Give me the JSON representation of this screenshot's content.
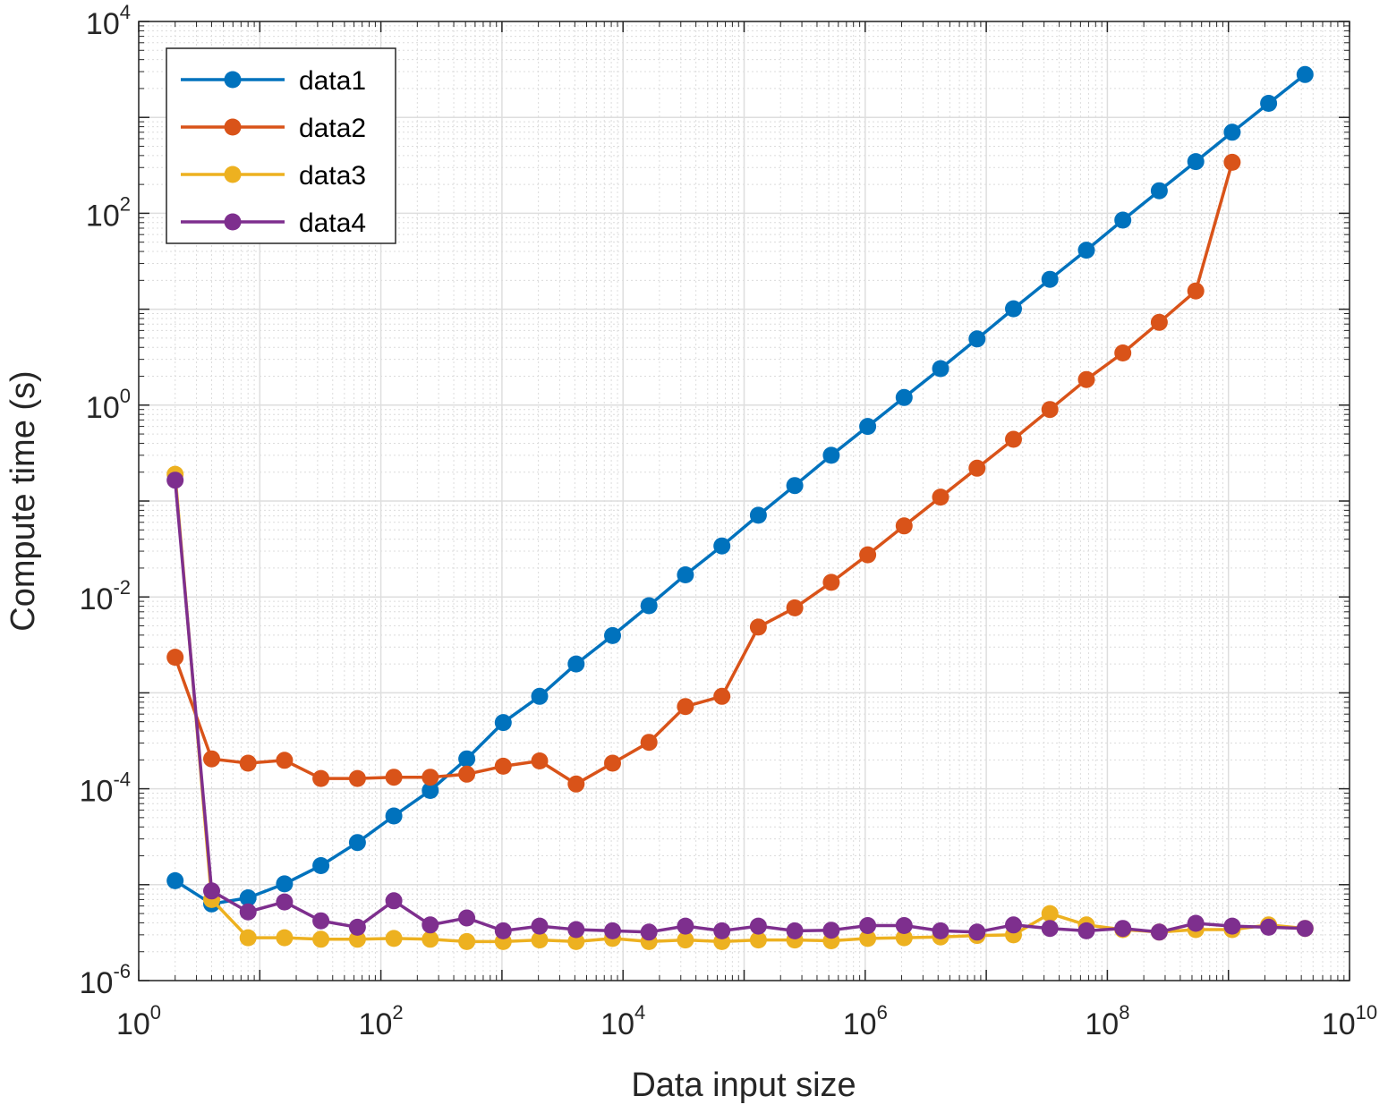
{
  "chart_data": {
    "type": "line",
    "xlabel": "Data input size",
    "ylabel": "Compute time (s)",
    "x_scale": "log",
    "y_scale": "log",
    "xlim": [
      1,
      10000000000
    ],
    "ylim": [
      1e-06,
      10000
    ],
    "grid": true,
    "minor_grid": true,
    "legend_position": "top-left",
    "x_ticks": [
      {
        "base": "10",
        "exp": "0"
      },
      {
        "base": "10",
        "exp": "2"
      },
      {
        "base": "10",
        "exp": "4"
      },
      {
        "base": "10",
        "exp": "6"
      },
      {
        "base": "10",
        "exp": "8"
      },
      {
        "base": "10",
        "exp": "10"
      }
    ],
    "y_ticks": [
      {
        "base": "10",
        "exp": "-6"
      },
      {
        "base": "10",
        "exp": "-4"
      },
      {
        "base": "10",
        "exp": "-2"
      },
      {
        "base": "10",
        "exp": "0"
      },
      {
        "base": "10",
        "exp": "2"
      },
      {
        "base": "10",
        "exp": "4"
      }
    ],
    "x": [
      2,
      4,
      8,
      16,
      32,
      64,
      128,
      256,
      512,
      1024,
      2048,
      4096,
      8192,
      16384,
      32768,
      65536,
      131072,
      262144,
      524288,
      1048576,
      2097152,
      4194304,
      8388608,
      16777216,
      33554432,
      67108864,
      134217728,
      268435456,
      536870912,
      1073741824,
      2147483648,
      4294967296
    ],
    "series": [
      {
        "name": "data1",
        "color": "#0072BD",
        "values": [
          1.1e-05,
          6.3e-06,
          7.3e-06,
          1.02e-05,
          1.58e-05,
          2.75e-05,
          5.2e-05,
          9.6e-05,
          0.000205,
          0.00049,
          0.00092,
          0.002,
          0.00395,
          0.0081,
          0.017,
          0.034,
          0.071,
          0.145,
          0.3,
          0.6,
          1.2,
          2.4,
          4.9,
          10.1,
          20.5,
          41.3,
          85,
          172,
          346,
          700,
          1400,
          2800
        ]
      },
      {
        "name": "data2",
        "color": "#D95319",
        "values": [
          0.00235,
          0.000205,
          0.000185,
          0.000198,
          0.000128,
          0.000128,
          0.000132,
          0.000132,
          0.000142,
          0.000172,
          0.000195,
          0.000112,
          0.000185,
          0.000305,
          0.00072,
          0.00092,
          0.00485,
          0.0077,
          0.0142,
          0.0275,
          0.055,
          0.11,
          0.22,
          0.44,
          0.9,
          1.85,
          3.5,
          7.3,
          15.5,
          340,
          null,
          null
        ]
      },
      {
        "name": "data3",
        "color": "#EDB120",
        "values": [
          0.19,
          7e-06,
          2.8e-06,
          2.8e-06,
          2.7e-06,
          2.7e-06,
          2.75e-06,
          2.7e-06,
          2.55e-06,
          2.55e-06,
          2.65e-06,
          2.55e-06,
          2.75e-06,
          2.55e-06,
          2.65e-06,
          2.55e-06,
          2.65e-06,
          2.65e-06,
          2.6e-06,
          2.75e-06,
          2.8e-06,
          2.85e-06,
          2.95e-06,
          3e-06,
          5e-06,
          3.8e-06,
          3.4e-06,
          3.2e-06,
          3.4e-06,
          3.4e-06,
          3.8e-06,
          3.5e-06
        ]
      },
      {
        "name": "data4",
        "color": "#7E2F8E",
        "values": [
          0.165,
          8.6e-06,
          5.2e-06,
          6.6e-06,
          4.2e-06,
          3.6e-06,
          6.8e-06,
          3.8e-06,
          4.5e-06,
          3.3e-06,
          3.7e-06,
          3.4e-06,
          3.3e-06,
          3.2e-06,
          3.7e-06,
          3.3e-06,
          3.7e-06,
          3.3e-06,
          3.35e-06,
          3.75e-06,
          3.75e-06,
          3.3e-06,
          3.2e-06,
          3.8e-06,
          3.5e-06,
          3.3e-06,
          3.5e-06,
          3.2e-06,
          3.95e-06,
          3.7e-06,
          3.6e-06,
          3.5e-06
        ]
      }
    ]
  }
}
